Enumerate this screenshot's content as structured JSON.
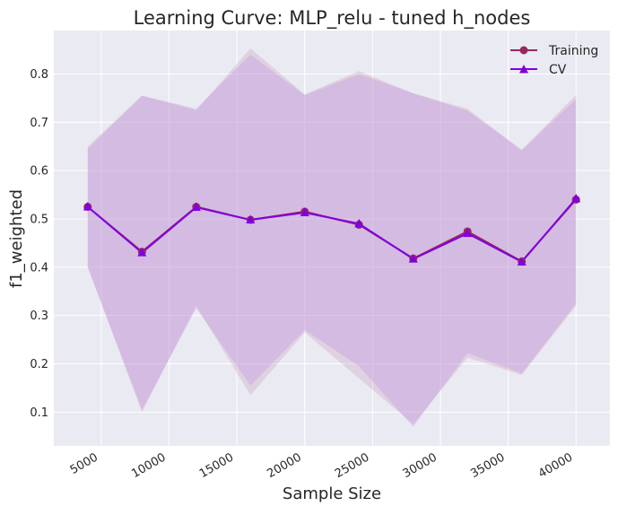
{
  "chart_data": {
    "type": "line",
    "title": "Learning Curve: MLP_relu - tuned h_nodes",
    "xlabel": "Sample Size",
    "ylabel": "f1_weighted",
    "xlim": [
      1500,
      42500
    ],
    "ylim": [
      0.03,
      0.89
    ],
    "xticks": [
      5000,
      10000,
      15000,
      20000,
      25000,
      30000,
      35000,
      40000
    ],
    "yticks": [
      0.1,
      0.2,
      0.3,
      0.4,
      0.5,
      0.6,
      0.7,
      0.8
    ],
    "grid": true,
    "legend_position": "top-right",
    "x": [
      4000,
      8000,
      12000,
      16000,
      20000,
      24000,
      28000,
      32000,
      36000,
      40000
    ],
    "series": [
      {
        "name": "Training",
        "color": "#962860",
        "marker": "circle",
        "values": [
          0.525,
          0.432,
          0.525,
          0.498,
          0.515,
          0.488,
          0.418,
          0.474,
          0.412,
          0.54
        ],
        "band_lower": [
          0.4,
          0.1,
          0.32,
          0.135,
          0.265,
          0.17,
          0.075,
          0.213,
          0.177,
          0.32
        ],
        "band_upper": [
          0.65,
          0.755,
          0.725,
          0.853,
          0.758,
          0.806,
          0.76,
          0.728,
          0.643,
          0.757
        ]
      },
      {
        "name": "CV",
        "color": "#8000e0",
        "marker": "triangle",
        "values": [
          0.525,
          0.43,
          0.524,
          0.498,
          0.513,
          0.49,
          0.417,
          0.47,
          0.411,
          0.542
        ],
        "band_lower": [
          0.4,
          0.105,
          0.315,
          0.155,
          0.27,
          0.195,
          0.07,
          0.222,
          0.18,
          0.325
        ],
        "band_upper": [
          0.645,
          0.755,
          0.728,
          0.84,
          0.756,
          0.8,
          0.76,
          0.724,
          0.642,
          0.748
        ]
      }
    ]
  }
}
